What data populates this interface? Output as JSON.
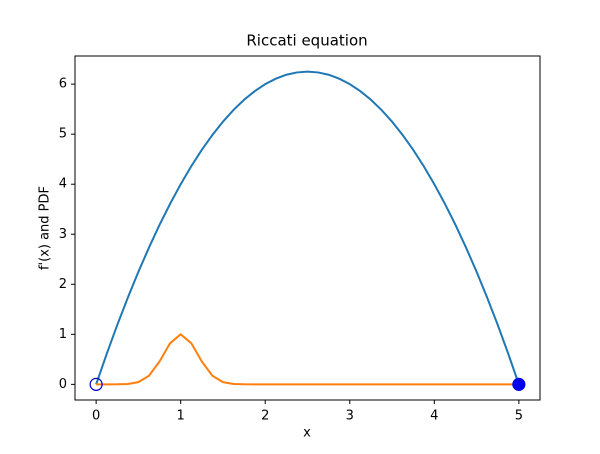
{
  "chart_data": {
    "type": "line",
    "title": "Riccati equation",
    "x_label": "x",
    "y_label": "f'(x) and PDF",
    "x": [
      0,
      0.125,
      0.25,
      0.375,
      0.5,
      0.625,
      0.75,
      0.875,
      1,
      1.125,
      1.25,
      1.375,
      1.5,
      1.625,
      1.75,
      1.875,
      2,
      2.125,
      2.25,
      2.375,
      2.5,
      2.625,
      2.75,
      2.875,
      3,
      3.125,
      3.25,
      3.375,
      3.5,
      3.625,
      3.75,
      3.875,
      4,
      4.125,
      4.25,
      4.375,
      4.5,
      4.625,
      4.75,
      4.875,
      5
    ],
    "series": [
      {
        "color": "#1f77b4",
        "values": [
          0,
          0.609,
          1.188,
          1.734,
          2.25,
          2.734,
          3.188,
          3.609,
          4,
          4.359,
          4.688,
          4.984,
          5.25,
          5.484,
          5.688,
          5.859,
          6,
          6.109,
          6.188,
          6.234,
          6.25,
          6.234,
          6.188,
          6.109,
          6,
          5.859,
          5.688,
          5.484,
          5.25,
          4.984,
          4.688,
          4.359,
          4,
          3.609,
          3.188,
          2.734,
          2.25,
          1.734,
          1.188,
          0.609,
          0
        ]
      },
      {
        "color": "#ff7f0e",
        "values": [
          0,
          0,
          0.001,
          0.008,
          0.044,
          0.172,
          0.458,
          0.823,
          1,
          0.823,
          0.458,
          0.172,
          0.044,
          0.008,
          0.001,
          0,
          0,
          0,
          0,
          0,
          0,
          0,
          0,
          0,
          0,
          0,
          0,
          0,
          0,
          0,
          0,
          0,
          0,
          0,
          0,
          0,
          0,
          0,
          0,
          0,
          0
        ]
      }
    ],
    "markers": [
      {
        "x": 0,
        "y": 0,
        "filled": false,
        "color": "#0000cc"
      },
      {
        "x": 5,
        "y": 0,
        "filled": true,
        "color": "#0000ee"
      }
    ],
    "xlim": [
      -0.25,
      5.25
    ],
    "ylim": [
      -0.3125,
      6.5625
    ],
    "xticks": [
      0,
      1,
      2,
      3,
      4,
      5
    ],
    "yticks": [
      0,
      1,
      2,
      3,
      4,
      5,
      6
    ],
    "grid": false
  }
}
